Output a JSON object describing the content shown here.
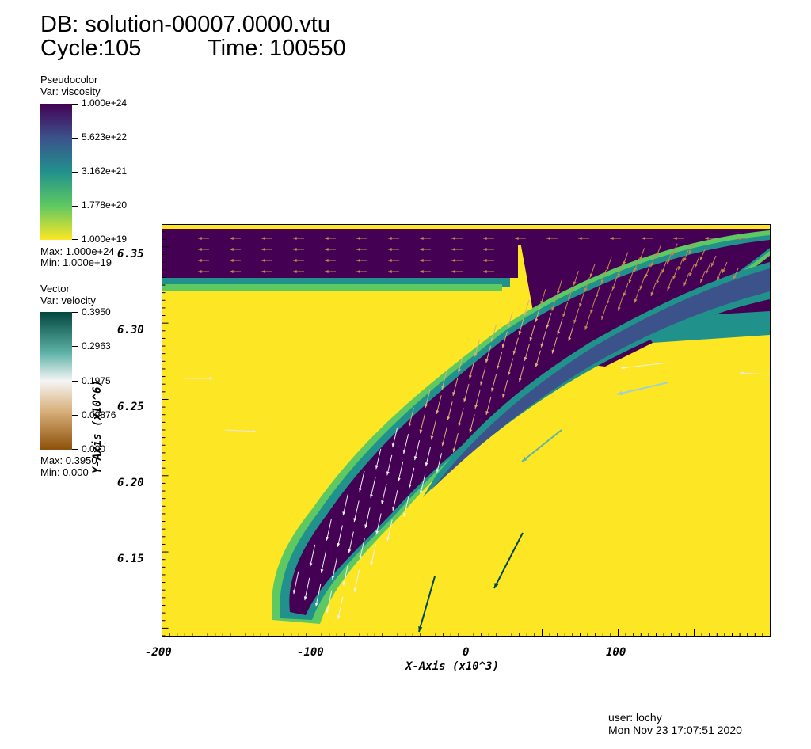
{
  "header": {
    "db_line": "DB: solution-00007.0000.vtu",
    "cycle_label": "Cycle:",
    "cycle_value": "105",
    "time_label": "Time:",
    "time_value": "100550"
  },
  "pseudocolor_legend": {
    "title": "Pseudocolor",
    "var": "Var: viscosity",
    "ticks": [
      "1.000e+24",
      "5.623e+22",
      "3.162e+21",
      "1.778e+20",
      "1.000e+19"
    ],
    "max": "Max:  1.000e+24",
    "min": "Min:  1.000e+19",
    "colors": [
      "#440154",
      "#3b528b",
      "#21918c",
      "#5ec962",
      "#fde725"
    ]
  },
  "vector_legend": {
    "title": "Vector",
    "var": "Var: velocity",
    "ticks": [
      "0.3950",
      "0.2963",
      "0.1975",
      "0.09876",
      "0.000"
    ],
    "max": "Max:  0.3950",
    "min": "Min:  0.000",
    "colors": [
      "#01463f",
      "#5fb3a8",
      "#f5f5f5",
      "#d8b07a",
      "#8c510a"
    ]
  },
  "plot": {
    "x_axis_title": "X-Axis (x10^3)",
    "y_axis_title": "Y-Axis (x10^6)",
    "x_ticks": [
      "-200",
      "-100",
      "0",
      "100"
    ],
    "y_ticks": [
      "6.35",
      "6.30",
      "6.25",
      "6.20",
      "6.15"
    ],
    "background_color": "#fde725",
    "slab_color": "#440154"
  },
  "footer": {
    "user": "user: lochy",
    "date": "Mon Nov 23 17:07:51 2020"
  }
}
